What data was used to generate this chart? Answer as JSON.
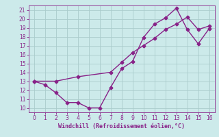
{
  "line1_x": [
    0,
    1,
    2,
    3,
    4,
    5,
    6,
    7,
    8,
    9,
    10,
    11,
    12,
    13,
    14,
    15,
    16
  ],
  "line1_y": [
    13.0,
    12.6,
    11.7,
    10.6,
    10.6,
    10.0,
    10.0,
    12.3,
    14.4,
    15.2,
    17.9,
    19.4,
    20.1,
    21.2,
    18.8,
    17.2,
    18.9
  ],
  "line2_x": [
    0,
    2,
    4,
    7,
    8,
    9,
    10,
    11,
    12,
    13,
    14,
    15,
    16
  ],
  "line2_y": [
    13.0,
    13.0,
    13.5,
    14.0,
    15.1,
    16.2,
    17.0,
    17.8,
    18.8,
    19.4,
    20.2,
    18.8,
    19.2
  ],
  "line_color": "#882288",
  "bg_color": "#cceaea",
  "grid_color": "#aacccc",
  "xlabel": "Windchill (Refroidissement éolien,°C)",
  "xlabel_color": "#882288",
  "tick_color": "#882288",
  "xlim": [
    -0.5,
    16.5
  ],
  "ylim": [
    9.5,
    21.5
  ],
  "xticks": [
    0,
    1,
    2,
    3,
    4,
    5,
    6,
    7,
    8,
    9,
    10,
    11,
    12,
    13,
    14,
    15,
    16
  ],
  "yticks": [
    10,
    11,
    12,
    13,
    14,
    15,
    16,
    17,
    18,
    19,
    20,
    21
  ],
  "marker": "D",
  "markersize": 2.5,
  "linewidth": 1.0
}
